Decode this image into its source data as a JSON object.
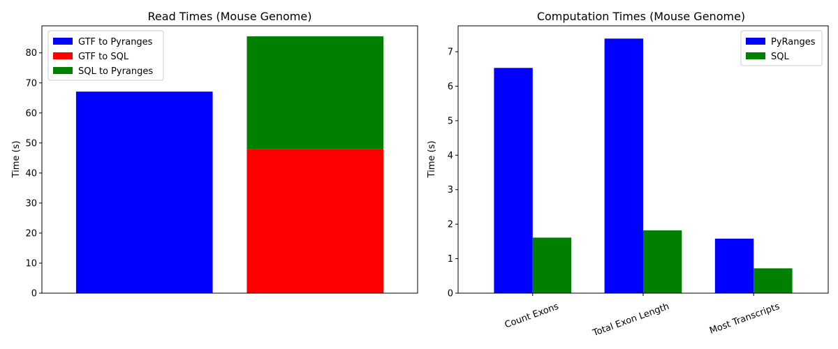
{
  "chart_data": [
    {
      "type": "bar",
      "stacked": true,
      "title": "Read Times (Mouse Genome)",
      "xlabel": "",
      "ylabel": "Time (s)",
      "ylim": [
        0,
        89
      ],
      "yticks": [
        0,
        10,
        20,
        30,
        40,
        50,
        60,
        70,
        80
      ],
      "legend_position": "top-left",
      "grid": false,
      "bars": [
        {
          "segments": [
            {
              "series": "GTF to Pyranges",
              "start": 0,
              "value": 67.1
            }
          ]
        },
        {
          "segments": [
            {
              "series": "GTF to SQL",
              "start": 0,
              "value": 47.9
            },
            {
              "series": "SQL to Pyranges",
              "start": 47.9,
              "value": 37.6
            }
          ]
        }
      ],
      "series": [
        {
          "name": "GTF to Pyranges",
          "color": "#0000ff"
        },
        {
          "name": "GTF to SQL",
          "color": "#ff0000"
        },
        {
          "name": "SQL to Pyranges",
          "color": "#008000"
        }
      ]
    },
    {
      "type": "bar",
      "title": "Computation Times (Mouse Genome)",
      "xlabel": "",
      "ylabel": "Time (s)",
      "ylim": [
        0,
        7.75
      ],
      "yticks": [
        0,
        1,
        2,
        3,
        4,
        5,
        6,
        7
      ],
      "legend_position": "top-right",
      "grid": false,
      "categories": [
        "Count Exons",
        "Total Exon Length",
        "Most Transcripts"
      ],
      "series": [
        {
          "name": "PyRanges",
          "color": "#0000ff",
          "values": [
            6.53,
            7.38,
            1.58
          ]
        },
        {
          "name": "SQL",
          "color": "#008000",
          "values": [
            1.61,
            1.82,
            0.72
          ]
        }
      ]
    }
  ]
}
